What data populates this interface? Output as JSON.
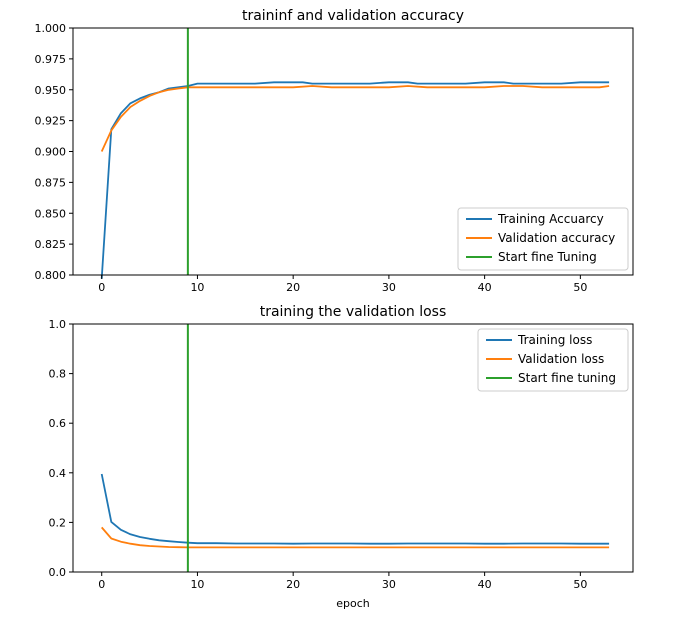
{
  "chart_data": [
    {
      "type": "line",
      "title": "traininf and validation accuracy",
      "xlabel": "",
      "ylabel": "",
      "xlim": [
        -3,
        55.5
      ],
      "ylim": [
        0.8,
        1.0
      ],
      "xticks": [
        0,
        10,
        20,
        30,
        40,
        50
      ],
      "yticks": [
        0.8,
        0.825,
        0.85,
        0.875,
        0.9,
        0.925,
        0.95,
        0.975,
        1.0
      ],
      "xtick_labels": [
        "0",
        "10",
        "20",
        "30",
        "40",
        "50"
      ],
      "ytick_labels": [
        "0.800",
        "0.825",
        "0.850",
        "0.875",
        "0.900",
        "0.925",
        "0.950",
        "0.975",
        "1.000"
      ],
      "grid": false,
      "legend_position": "lower-right",
      "series": [
        {
          "name": "Training Accuarcy",
          "color": "#1f77b4",
          "x": [
            0,
            1,
            2,
            3,
            4,
            5,
            6,
            7,
            8,
            9,
            10,
            12,
            14,
            16,
            18,
            20,
            21,
            22,
            24,
            26,
            28,
            30,
            32,
            33,
            34,
            36,
            38,
            40,
            42,
            43,
            44,
            46,
            48,
            50,
            52,
            53
          ],
          "y": [
            0.797,
            0.918,
            0.931,
            0.939,
            0.943,
            0.946,
            0.948,
            0.951,
            0.952,
            0.953,
            0.955,
            0.955,
            0.955,
            0.955,
            0.956,
            0.956,
            0.956,
            0.955,
            0.955,
            0.955,
            0.955,
            0.956,
            0.956,
            0.955,
            0.955,
            0.955,
            0.955,
            0.956,
            0.956,
            0.955,
            0.955,
            0.955,
            0.955,
            0.956,
            0.956,
            0.956
          ]
        },
        {
          "name": "Validation accuracy",
          "color": "#ff7f0e",
          "x": [
            0,
            1,
            2,
            3,
            4,
            5,
            6,
            7,
            8,
            9,
            10,
            12,
            14,
            16,
            18,
            20,
            22,
            24,
            26,
            28,
            30,
            32,
            34,
            36,
            38,
            40,
            42,
            44,
            46,
            48,
            50,
            52,
            53
          ],
          "y": [
            0.9,
            0.917,
            0.928,
            0.936,
            0.941,
            0.945,
            0.948,
            0.95,
            0.951,
            0.952,
            0.952,
            0.952,
            0.952,
            0.952,
            0.952,
            0.952,
            0.953,
            0.952,
            0.952,
            0.952,
            0.952,
            0.953,
            0.952,
            0.952,
            0.952,
            0.952,
            0.953,
            0.953,
            0.952,
            0.952,
            0.952,
            0.952,
            0.953
          ]
        },
        {
          "name": "Start fine Tuning",
          "color": "#2ca02c",
          "vline_x": 9
        }
      ]
    },
    {
      "type": "line",
      "title": "training the validation loss",
      "xlabel": "epoch",
      "ylabel": "",
      "xlim": [
        -3,
        55.5
      ],
      "ylim": [
        0.0,
        1.0
      ],
      "xticks": [
        0,
        10,
        20,
        30,
        40,
        50
      ],
      "yticks": [
        0.0,
        0.2,
        0.4,
        0.6,
        0.8,
        1.0
      ],
      "xtick_labels": [
        "0",
        "10",
        "20",
        "30",
        "40",
        "50"
      ],
      "ytick_labels": [
        "0.0",
        "0.2",
        "0.4",
        "0.6",
        "0.8",
        "1.0"
      ],
      "grid": false,
      "legend_position": "upper-right",
      "series": [
        {
          "name": "Training loss",
          "color": "#1f77b4",
          "x": [
            0,
            1,
            2,
            3,
            4,
            5,
            6,
            7,
            8,
            9,
            10,
            12,
            14,
            16,
            18,
            20,
            22,
            24,
            26,
            28,
            30,
            32,
            34,
            36,
            38,
            40,
            42,
            44,
            46,
            48,
            50,
            52,
            53
          ],
          "y": [
            0.395,
            0.202,
            0.17,
            0.152,
            0.141,
            0.134,
            0.128,
            0.124,
            0.121,
            0.118,
            0.116,
            0.116,
            0.115,
            0.115,
            0.115,
            0.114,
            0.115,
            0.115,
            0.115,
            0.114,
            0.114,
            0.115,
            0.115,
            0.115,
            0.115,
            0.114,
            0.114,
            0.115,
            0.115,
            0.115,
            0.114,
            0.114,
            0.114
          ]
        },
        {
          "name": "Validation loss",
          "color": "#ff7f0e",
          "x": [
            0,
            1,
            2,
            3,
            4,
            5,
            6,
            7,
            8,
            9,
            10,
            12,
            14,
            16,
            18,
            20,
            22,
            24,
            26,
            28,
            30,
            32,
            34,
            36,
            38,
            40,
            42,
            44,
            46,
            48,
            50,
            52,
            53
          ],
          "y": [
            0.18,
            0.135,
            0.122,
            0.114,
            0.108,
            0.105,
            0.103,
            0.101,
            0.1,
            0.099,
            0.099,
            0.099,
            0.099,
            0.099,
            0.099,
            0.099,
            0.099,
            0.099,
            0.099,
            0.099,
            0.099,
            0.099,
            0.099,
            0.099,
            0.099,
            0.099,
            0.099,
            0.099,
            0.099,
            0.099,
            0.099,
            0.099,
            0.099
          ]
        },
        {
          "name": "Start fine tuning",
          "color": "#2ca02c",
          "vline_x": 9
        }
      ]
    }
  ]
}
